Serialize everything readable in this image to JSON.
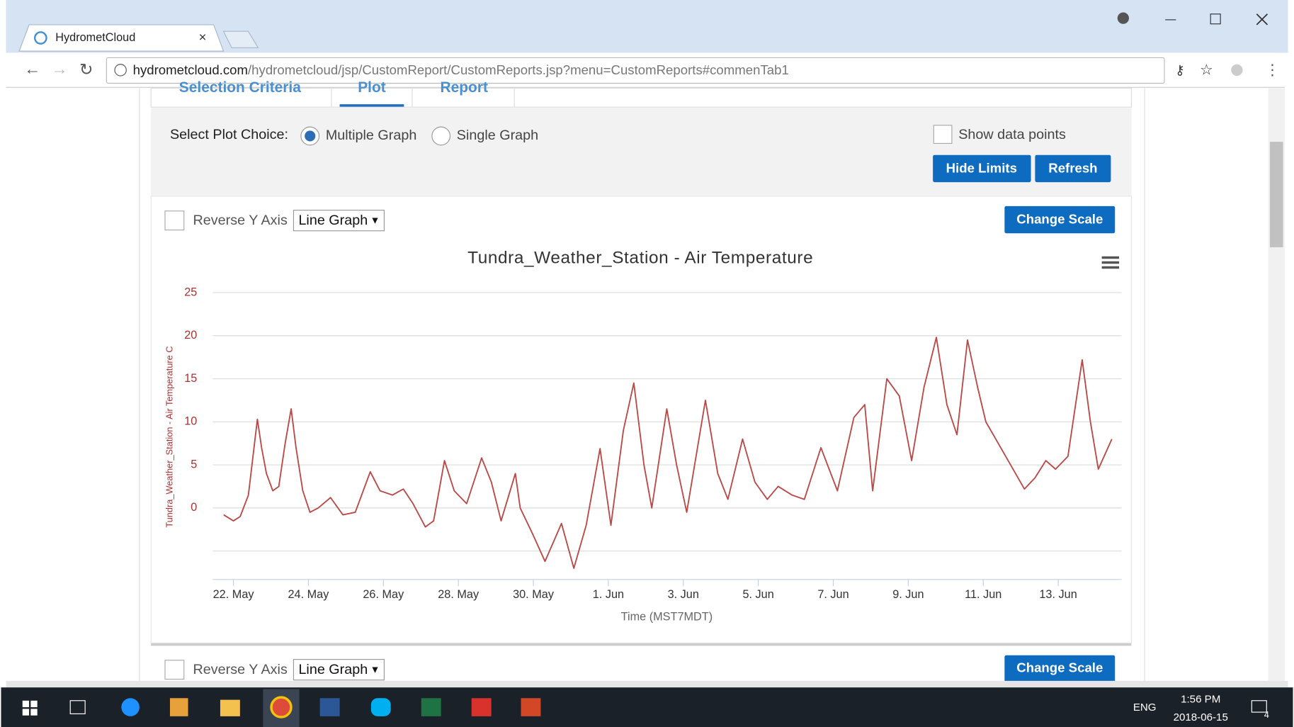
{
  "browser": {
    "tab_title": "HydrometCloud",
    "url_host": "hydrometcloud.com",
    "url_path": "/hydrometcloud/jsp/CustomReport/CustomReports.jsp?menu=CustomReports#commenTab1"
  },
  "tabs": [
    "Selection Criteria",
    "Plot",
    "Report"
  ],
  "plot_choice": {
    "label": "Select Plot Choice:",
    "options": [
      "Multiple Graph",
      "Single Graph"
    ],
    "show_data_points": "Show data points",
    "buttons": [
      "Hide Limits",
      "Refresh"
    ]
  },
  "graph_controls": {
    "reverse_y": "Reverse Y Axis",
    "graph_type": "Line Graph",
    "change_scale": "Change Scale"
  },
  "second_graph_controls": {
    "reverse_y": "Reverse Y Axis",
    "graph_type": "Line Graph",
    "change_scale": "Change Scale"
  },
  "chart_data": {
    "type": "line",
    "title": "Tundra_Weather_Station - Air Temperature",
    "x_label": "Time (MST7MDT)",
    "y_label": "Tundra_Weather_Station - Air Temperature C",
    "xlim": [
      21.45,
      45.69
    ],
    "ylim": [
      -8.3,
      25
    ],
    "xticks": [
      {
        "value": 22,
        "label": "22. May"
      },
      {
        "value": 24,
        "label": "24. May"
      },
      {
        "value": 26,
        "label": "26. May"
      },
      {
        "value": 28,
        "label": "28. May"
      },
      {
        "value": 30,
        "label": "30. May"
      },
      {
        "value": 32,
        "label": "1. Jun"
      },
      {
        "value": 34,
        "label": "3. Jun"
      },
      {
        "value": 36,
        "label": "5. Jun"
      },
      {
        "value": 38,
        "label": "7. Jun"
      },
      {
        "value": 40,
        "label": "9. Jun"
      },
      {
        "value": 42,
        "label": "11. Jun"
      },
      {
        "value": 44,
        "label": "13. Jun"
      }
    ],
    "yticks": [
      {
        "value": -5,
        "label": null
      },
      0,
      5,
      10,
      15,
      20,
      25
    ],
    "grid": true,
    "series": [
      {
        "name": "Air Temperature",
        "color": "#b94a48",
        "x": [
          21.74,
          22,
          22.18,
          22.4,
          22.64,
          22.75,
          22.88,
          23.05,
          23.21,
          23.38,
          23.54,
          23.67,
          23.85,
          24.04,
          24.26,
          24.59,
          24.92,
          25.25,
          25.65,
          25.91,
          26.24,
          26.53,
          26.79,
          27.12,
          27.34,
          27.63,
          27.89,
          28.22,
          28.62,
          28.88,
          29.14,
          29.52,
          29.65,
          29.98,
          30.31,
          30.75,
          31.08,
          31.41,
          31.78,
          32.07,
          32.4,
          32.68,
          32.95,
          33.16,
          33.56,
          33.82,
          34.09,
          34.59,
          34.92,
          35.19,
          35.58,
          35.91,
          36.24,
          36.53,
          36.9,
          37.23,
          37.67,
          38.11,
          38.55,
          38.84,
          39.05,
          39.43,
          39.76,
          40.09,
          40.42,
          40.75,
          41.03,
          41.3,
          41.58,
          41.85,
          42.07,
          42.4,
          42.73,
          43.1,
          43.38,
          43.67,
          43.93,
          44.26,
          44.64,
          44.86,
          45.07,
          45.43
        ],
        "values": [
          -0.8,
          -1.5,
          -1,
          1.5,
          10.3,
          7,
          4,
          2,
          2.5,
          7.5,
          11.5,
          7,
          2,
          -0.5,
          0,
          1.2,
          -0.8,
          -0.5,
          4.2,
          2,
          1.5,
          2.2,
          0.5,
          -2.2,
          -1.5,
          5.5,
          2,
          0.5,
          5.8,
          3,
          -1.5,
          4,
          0,
          -3,
          -6.2,
          -1.8,
          -7,
          -2,
          6.9,
          -2,
          9,
          14.5,
          5,
          0,
          11.5,
          5,
          -0.5,
          12.5,
          4,
          1,
          8,
          3,
          1,
          2.5,
          1.5,
          1,
          7,
          2,
          10.5,
          12,
          2,
          15,
          13,
          5.5,
          14,
          19.8,
          12,
          8.5,
          19.5,
          14,
          10,
          7.5,
          5,
          2.2,
          3.5,
          5.5,
          4.5,
          6,
          17.2,
          10,
          4.5,
          8
        ]
      }
    ]
  },
  "taskbar": {
    "lang": "ENG",
    "time": "1:56 PM",
    "date": "2018-06-15",
    "notifications": "4"
  }
}
